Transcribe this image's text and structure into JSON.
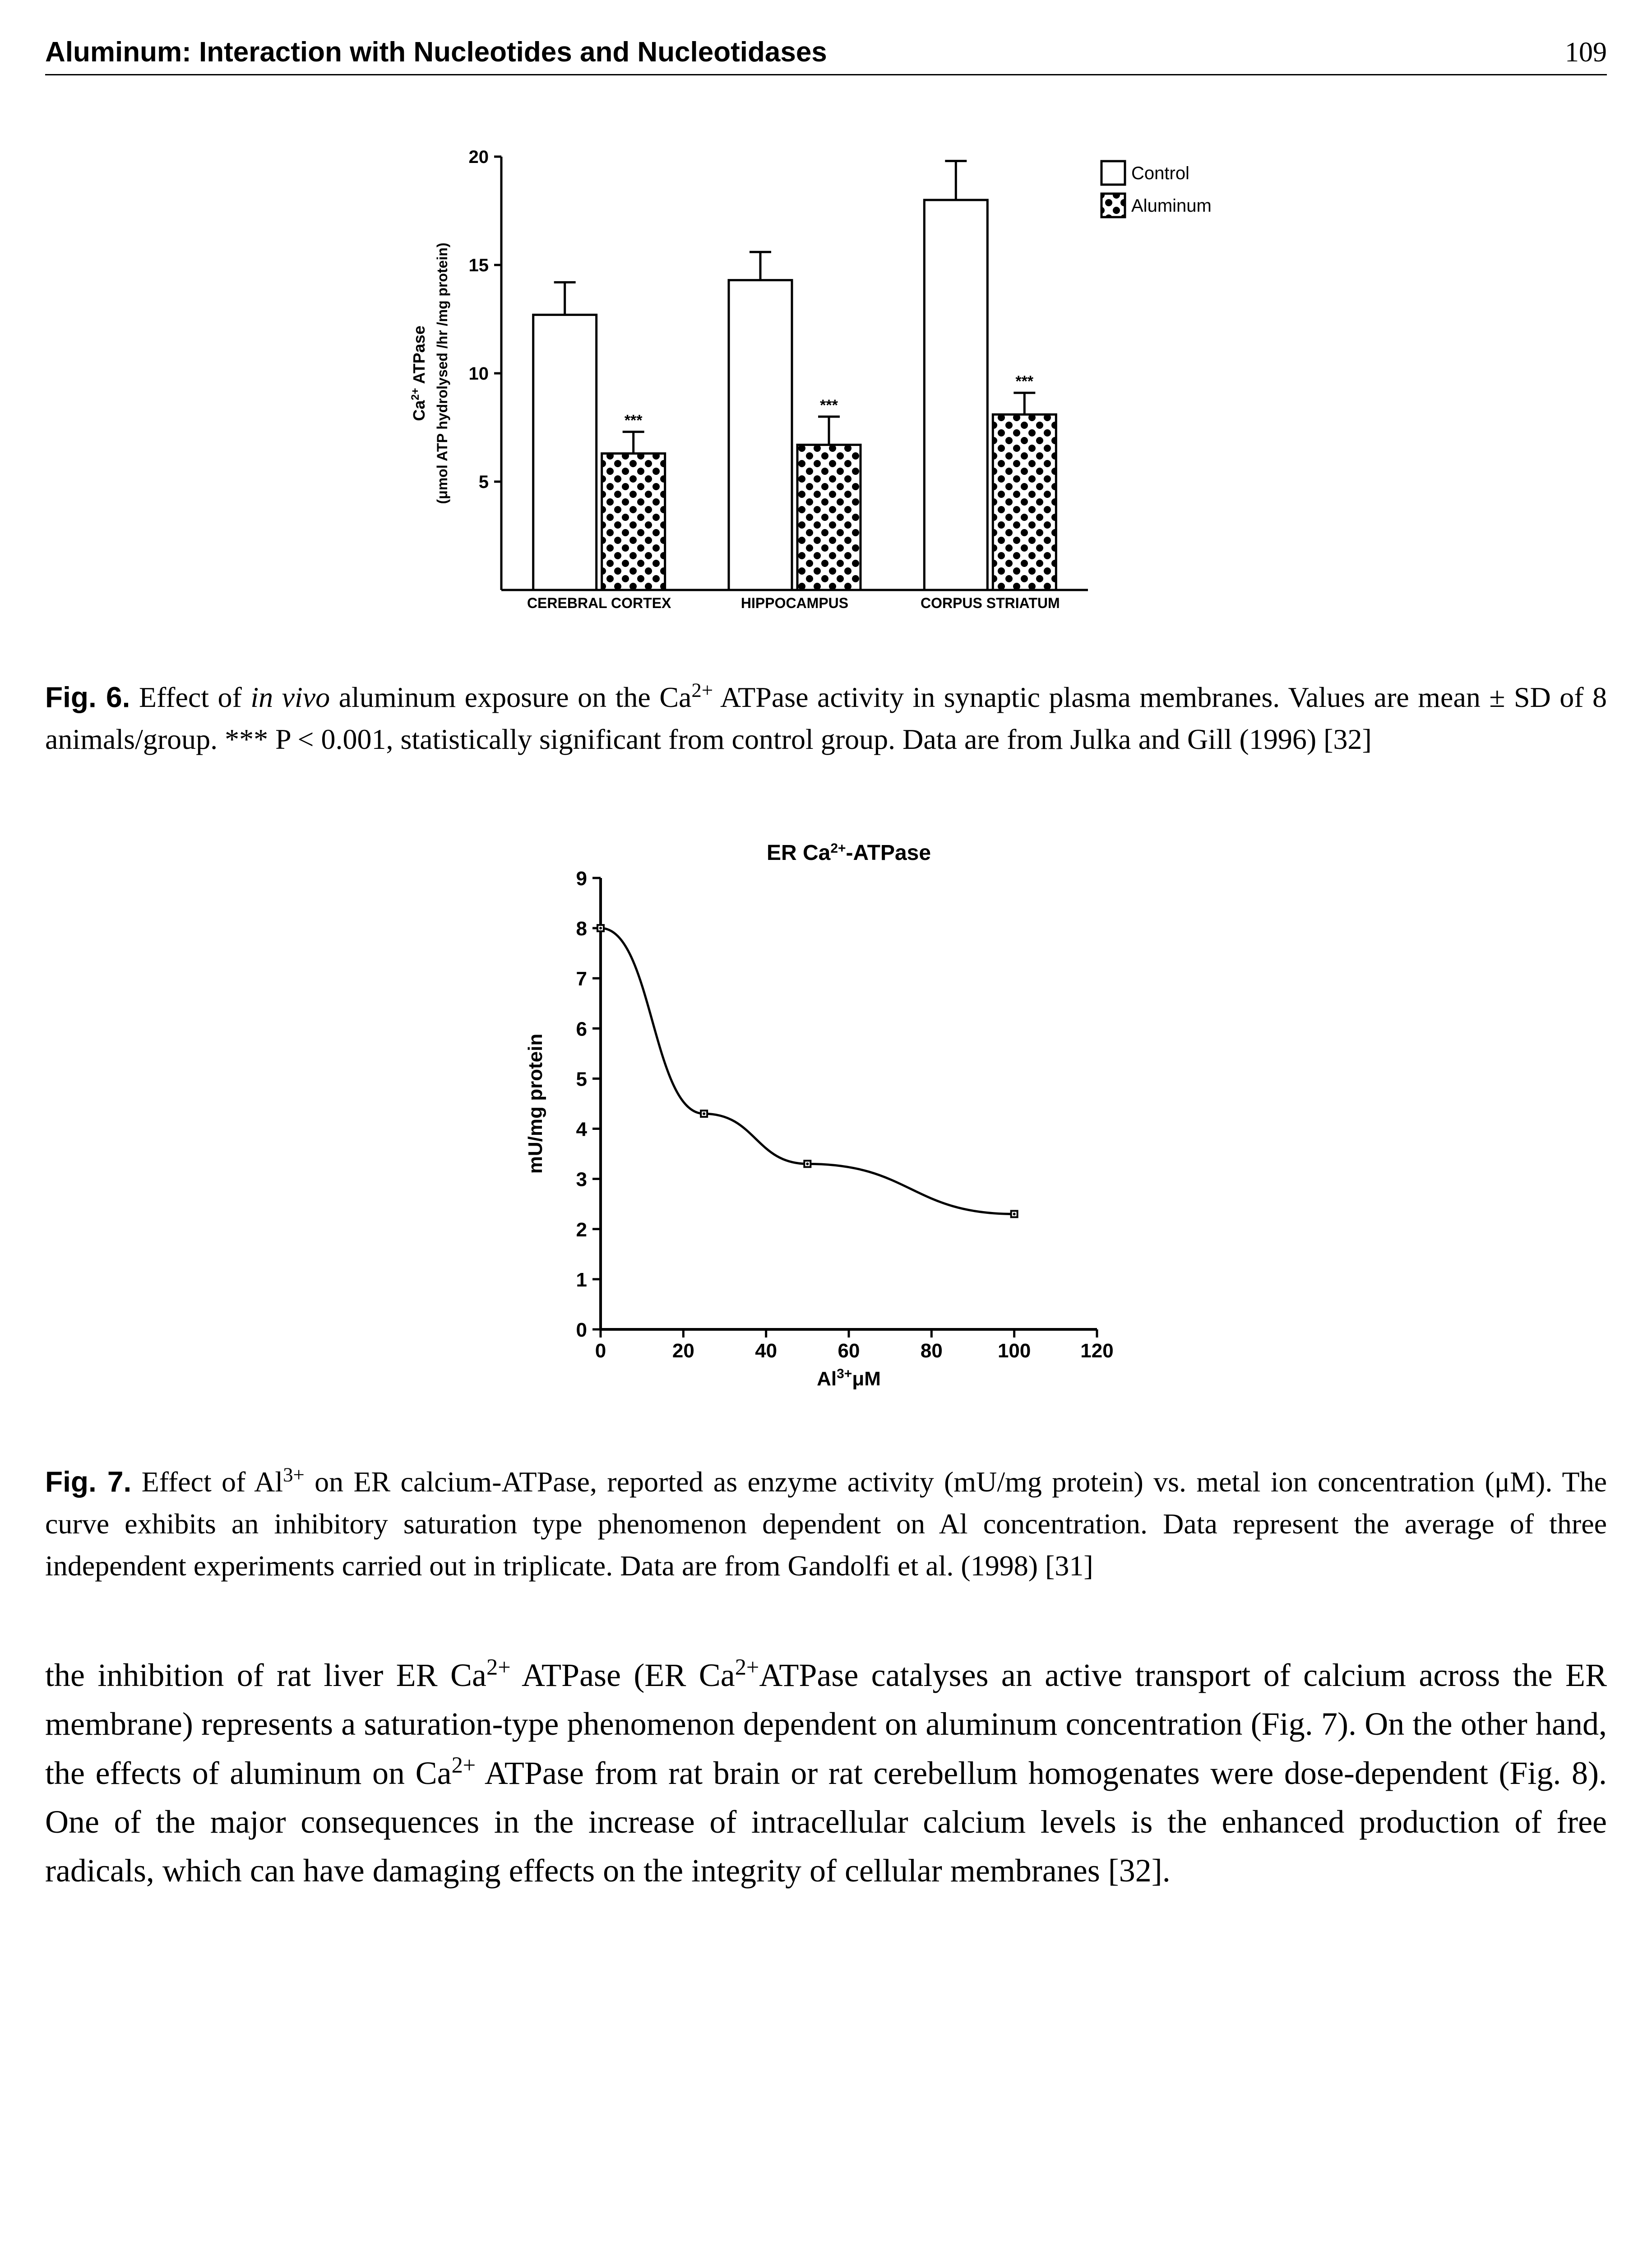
{
  "header": {
    "title": "Aluminum: Interaction with Nucleotides and Nucleotidases",
    "page_number": "109"
  },
  "fig6": {
    "chart": {
      "type": "bar",
      "ylabel_line1": "Ca²⁺ ATPase",
      "ylabel_line2": "(μmol ATP hydrolysed /hr /mg protein)",
      "ylabel_fontsize": 36,
      "categories": [
        "CEREBRAL CORTEX",
        "HIPPOCAMPUS",
        "CORPUS STRIATUM"
      ],
      "category_fontsize": 32,
      "legend": [
        "Control",
        "Aluminum"
      ],
      "legend_fontsize": 40,
      "ylim": [
        0,
        20
      ],
      "yticks": [
        5,
        10,
        15,
        20
      ],
      "control_values": [
        12.7,
        14.3,
        18.0
      ],
      "control_err": [
        1.5,
        1.3,
        1.8
      ],
      "aluminum_values": [
        6.3,
        6.7,
        8.1
      ],
      "aluminum_err": [
        1.0,
        1.3,
        1.0
      ],
      "sig_marker": "***",
      "bar_stroke": "#000000",
      "control_fill": "#ffffff",
      "aluminum_pattern": "dots",
      "background_color": "#ffffff"
    },
    "caption_label": "Fig. 6.",
    "caption_text": "Effect of in vivo aluminum exposure on the Ca²⁺ ATPase activity in synaptic plasma membranes. Values are mean ± SD of 8 animals/group. *** P < 0.001, statistically significant from control group. Data are from Julka and Gill (1996) [32]"
  },
  "fig7": {
    "chart": {
      "type": "line",
      "title": "ER Ca²⁺-ATPase",
      "title_fontsize": 48,
      "ylabel": "mU/mg protein",
      "ylabel_fontsize": 44,
      "xlabel": "Al³⁺μM",
      "xlabel_fontsize": 44,
      "xlim": [
        0,
        120
      ],
      "xticks": [
        0,
        20,
        40,
        60,
        80,
        100,
        120
      ],
      "ylim": [
        0,
        9
      ],
      "yticks": [
        0,
        1,
        2,
        3,
        4,
        5,
        6,
        7,
        8,
        9
      ],
      "points_x": [
        0,
        25,
        50,
        100
      ],
      "points_y": [
        8.0,
        4.3,
        3.3,
        2.3
      ],
      "line_color": "#000000",
      "marker": "square",
      "marker_size": 14,
      "background_color": "#ffffff",
      "axis_color": "#000000"
    },
    "caption_label": "Fig. 7.",
    "caption_text": "Effect of Al³⁺ on ER calcium-ATPase, reported as enzyme activity (mU/mg protein) vs. metal ion concentration (μM). The curve exhibits an inhibitory saturation type phenomenon dependent on Al concentration. Data represent the average of three independent experiments carried out in triplicate. Data are from Gandolfi et al. (1998) [31]"
  },
  "body": {
    "paragraph": "the inhibition of rat liver ER Ca²⁺ ATPase (ER Ca²⁺ATPase catalyses an active transport of calcium across the ER membrane) represents a saturation-type phenomenon dependent on aluminum concentration (Fig. 7). On the other hand, the effects of aluminum on Ca²⁺ ATPase from rat brain or rat cerebellum homogenates were dose-dependent (Fig. 8). One of the major consequences in the increase of intracellular calcium levels is the enhanced production of free radicals, which can have damaging effects on the integrity of cellular membranes [32]."
  }
}
